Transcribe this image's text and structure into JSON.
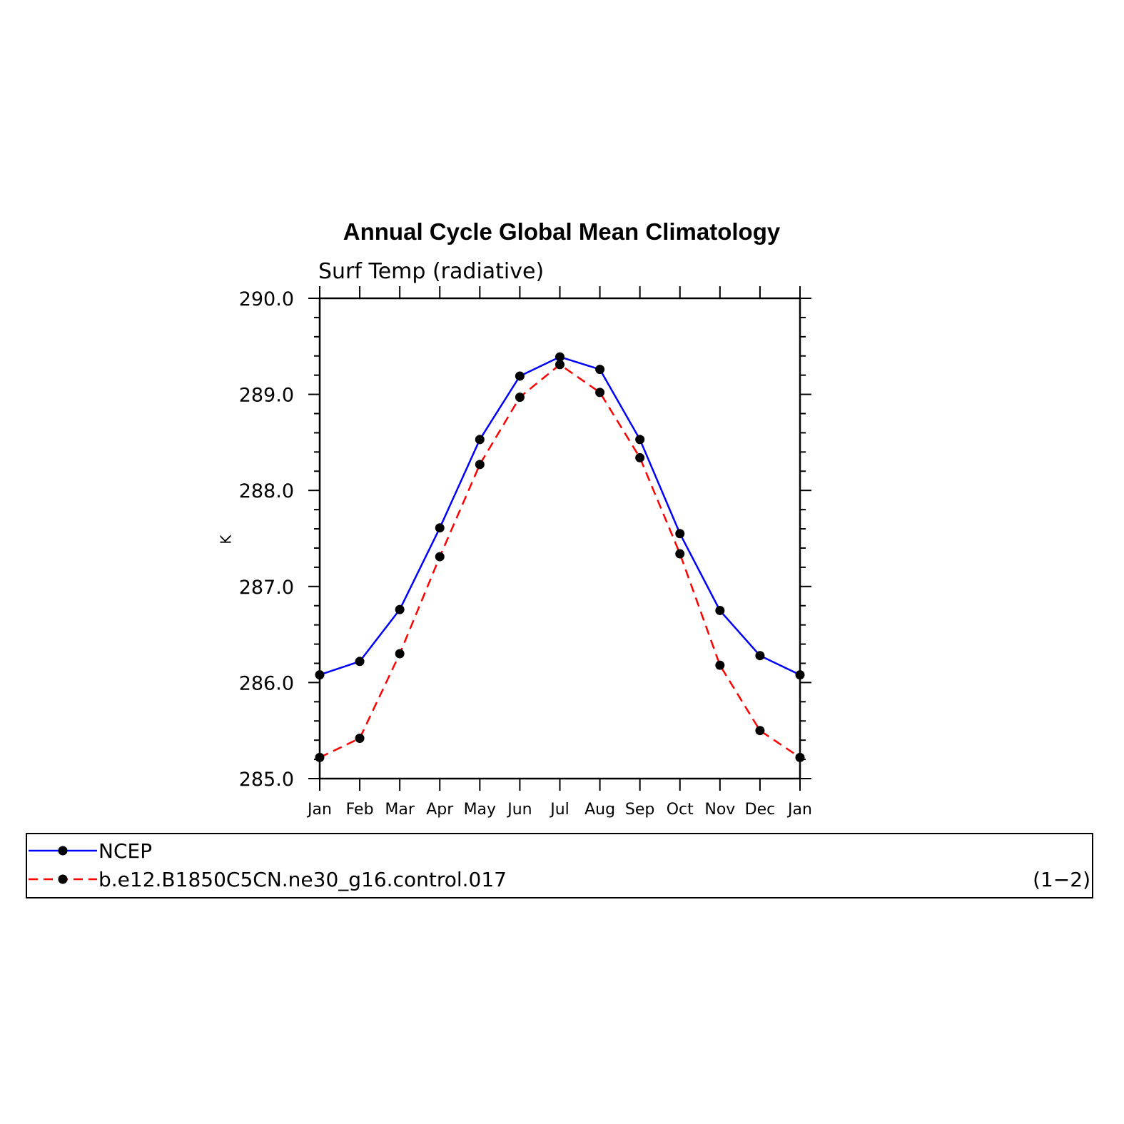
{
  "chart_data": {
    "type": "line",
    "title": "Annual Cycle Global Mean Climatology",
    "subtitle": "Surf Temp (radiative)",
    "ylabel": "K",
    "xlabel": "",
    "categories": [
      "Jan",
      "Feb",
      "Mar",
      "Apr",
      "May",
      "Jun",
      "Jul",
      "Aug",
      "Sep",
      "Oct",
      "Nov",
      "Dec",
      "Jan"
    ],
    "ylim": [
      285.0,
      290.0
    ],
    "yticks": [
      "285.0",
      "286.0",
      "287.0",
      "288.0",
      "289.0",
      "290.0"
    ],
    "grid": false,
    "legend_placement": "bottom",
    "panel_label": "(1−2)",
    "series": [
      {
        "name": "NCEP",
        "color": "#0000ff",
        "dash": "solid",
        "values": [
          286.08,
          286.22,
          286.76,
          287.61,
          288.53,
          289.19,
          289.39,
          289.26,
          288.53,
          287.55,
          286.75,
          286.28,
          286.08
        ]
      },
      {
        "name": "b.e12.B1850C5CN.ne30_g16.control.017",
        "color": "#ff0000",
        "dash": "dashed",
        "values": [
          285.22,
          285.42,
          286.3,
          287.31,
          288.27,
          288.97,
          289.31,
          289.02,
          288.34,
          287.34,
          286.18,
          285.5,
          285.22
        ]
      }
    ],
    "marker_color": "#000000"
  }
}
